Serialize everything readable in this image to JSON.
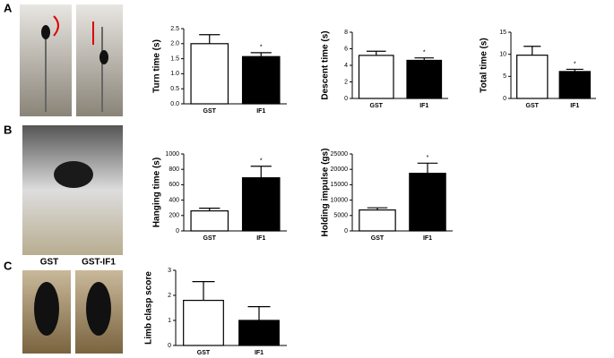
{
  "figure": {
    "panel_labels": [
      "A",
      "B",
      "C"
    ],
    "photo_labels": [
      "GST",
      "GST-IF1"
    ]
  },
  "chart_data": [
    {
      "type": "bar",
      "ylabel": "Turn time (s)",
      "categories": [
        "GST",
        "IF1"
      ],
      "values": [
        2.0,
        1.57
      ],
      "errors": [
        0.3,
        0.13
      ],
      "colors": [
        "#ffffff",
        "#000000"
      ],
      "annotation": "*",
      "ylim": [
        0,
        2.5
      ],
      "yticks": [
        {
          "value": 0,
          "label": "0.0"
        },
        0.5,
        {
          "value": 1,
          "label": "1.0"
        },
        1.5,
        {
          "value": 2,
          "label": "2.0"
        },
        2.5
      ]
    },
    {
      "type": "bar",
      "ylabel": "Descent time (s)",
      "categories": [
        "GST",
        "IF1"
      ],
      "values": [
        5.2,
        4.6
      ],
      "errors": [
        0.5,
        0.3
      ],
      "colors": [
        "#ffffff",
        "#000000"
      ],
      "annotation": "*",
      "ylim": [
        0,
        8
      ],
      "yticks": [
        0,
        2,
        4,
        6,
        8
      ]
    },
    {
      "type": "bar",
      "ylabel": "Total time (s)",
      "categories": [
        "GST",
        "IF1"
      ],
      "values": [
        9.8,
        6.1
      ],
      "errors": [
        2.0,
        0.5
      ],
      "colors": [
        "#ffffff",
        "#000000"
      ],
      "annotation": "*",
      "ylim": [
        0,
        15
      ],
      "yticks": [
        0,
        5,
        10,
        15
      ]
    },
    {
      "type": "bar",
      "ylabel": "Hanging time (s)",
      "categories": [
        "GST",
        "IF1"
      ],
      "values": [
        260,
        690
      ],
      "errors": [
        35,
        150
      ],
      "colors": [
        "#ffffff",
        "#000000"
      ],
      "annotation": "*",
      "ylim": [
        0,
        1000
      ],
      "yticks": [
        0,
        200,
        400,
        600,
        800,
        1000
      ]
    },
    {
      "type": "bar",
      "ylabel": "Holding impulse (gs)",
      "categories": [
        "GST",
        "IF1"
      ],
      "values": [
        6800,
        18700
      ],
      "errors": [
        700,
        3300
      ],
      "colors": [
        "#ffffff",
        "#000000"
      ],
      "annotation": "*",
      "ylim": [
        0,
        25000
      ],
      "yticks": [
        0,
        5000,
        10000,
        15000,
        20000,
        25000
      ]
    },
    {
      "type": "bar",
      "ylabel": "Limb clasp score",
      "categories": [
        "GST",
        "IF1"
      ],
      "values": [
        1.8,
        1.0
      ],
      "errors": [
        0.75,
        0.55
      ],
      "colors": [
        "#ffffff",
        "#000000"
      ],
      "ylim": [
        0,
        3
      ],
      "yticks": [
        0,
        1,
        2,
        3
      ]
    }
  ]
}
